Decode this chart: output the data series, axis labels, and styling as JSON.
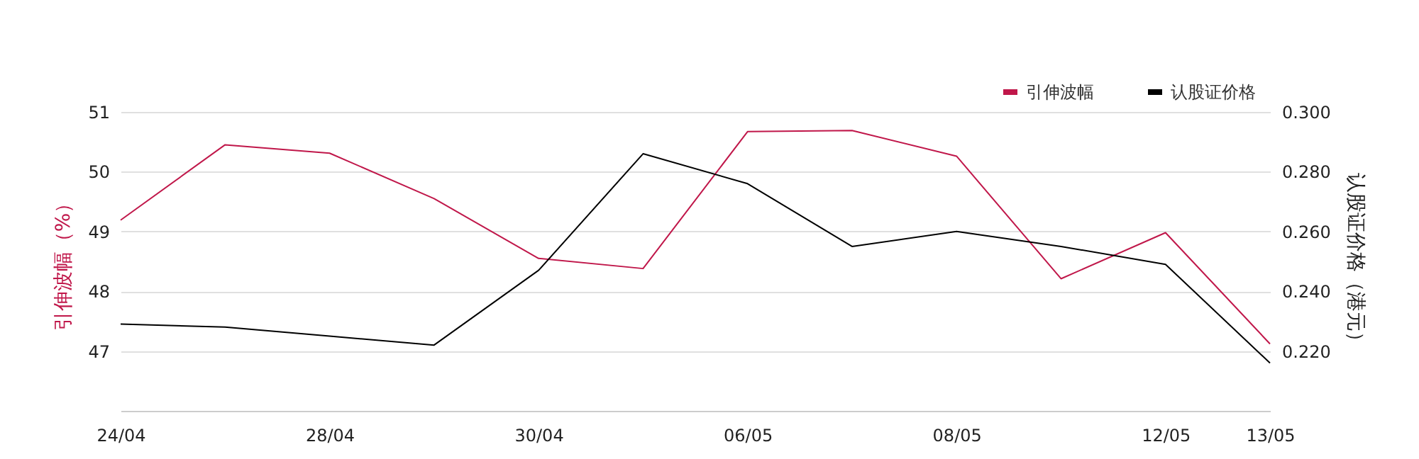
{
  "chart_data": {
    "type": "line",
    "categories": [
      "24/04",
      null,
      "28/04",
      null,
      "30/04",
      null,
      "06/05",
      null,
      "08/05",
      null,
      "12/05",
      "13/05"
    ],
    "series": [
      {
        "name": "引伸波幅",
        "color": "#c0174a",
        "values": [
          49.19,
          50.45,
          50.31,
          49.55,
          48.55,
          48.38,
          50.67,
          50.69,
          50.26,
          48.21,
          48.98,
          47.12
        ]
      },
      {
        "name": "认股证价格",
        "color": "#000000",
        "axis": "y2",
        "values": [
          0.229,
          0.228,
          0.225,
          0.222,
          0.247,
          0.286,
          0.276,
          0.255,
          0.26,
          0.255,
          0.249,
          0.216
        ]
      }
    ],
    "ylabel": "引伸波幅（%）",
    "y2label": "认股证价格（港元）",
    "ylim": [
      46,
      51
    ],
    "yticks": [
      47,
      48,
      49,
      50,
      51
    ],
    "y2lim": [
      0.2,
      0.3
    ],
    "y2ticks": [
      {
        "value": 0.22,
        "label": "0.220"
      },
      {
        "value": 0.24,
        "label": "0.240"
      },
      {
        "value": 0.26,
        "label": "0.260"
      },
      {
        "value": 0.28,
        "label": "0.280"
      },
      {
        "value": 0.3,
        "label": "0.300"
      }
    ],
    "grid": "y",
    "legend": "top right",
    "marker": "none",
    "line_style": "solid"
  }
}
